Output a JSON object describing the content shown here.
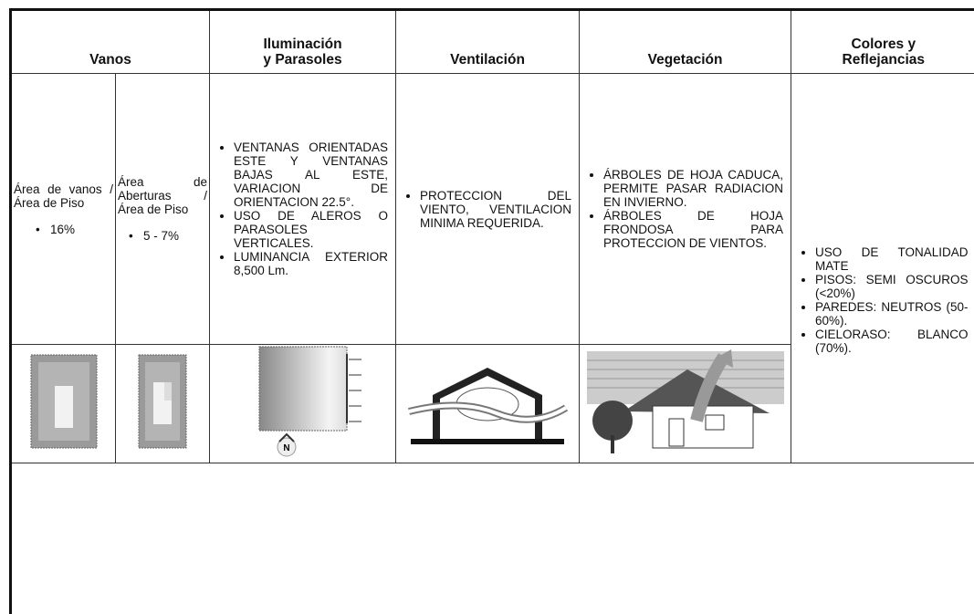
{
  "table": {
    "headers": [
      [
        "Vanos"
      ],
      [
        "Iluminación",
        "y Parasoles"
      ],
      [
        "Ventilación"
      ],
      [
        "Vegetación"
      ],
      [
        "Colores y",
        "Reflejancias"
      ]
    ],
    "vanos": [
      {
        "label": "Área de vanos / Área de Piso",
        "value": "16%"
      },
      {
        "label": "Área de Aberturas / Área de Piso",
        "value": "5 - 7%"
      }
    ],
    "iluminacion": [
      "VENTANAS ORIENTADAS ESTE Y VENTANAS BAJAS AL ESTE, VARIACION DE ORIENTACION 22.5°.",
      "USO DE ALEROS O PARASOLES VERTICALES.",
      "LUMINANCIA EXTERIOR 8,500 Lm."
    ],
    "ventilacion": [
      "PROTECCION DEL VIENTO, VENTILACION MINIMA REQUERIDA."
    ],
    "vegetacion": [
      "ÁRBOLES DE HOJA CADUCA, PERMITE PASAR RADIACION EN INVIERNO.",
      "ÁRBOLES DE HOJA FRONDOSA PARA PROTECCION DE VIENTOS."
    ],
    "colores": [
      "USO DE TONALIDAD MATE",
      "PISOS: SEMI OSCUROS (<20%)",
      "PAREDES: NEUTROS (50-60%).",
      "CIELORASO: BLANCO (70%)."
    ],
    "compass": "N"
  }
}
